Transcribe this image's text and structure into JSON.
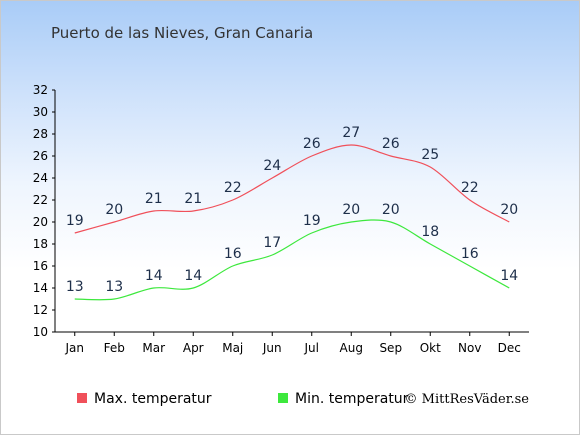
{
  "chart_data": {
    "type": "line",
    "title": "Puerto de las Nieves, Gran Canaria",
    "categories": [
      "Jan",
      "Feb",
      "Mar",
      "Apr",
      "Maj",
      "Jun",
      "Jul",
      "Aug",
      "Sep",
      "Okt",
      "Nov",
      "Dec"
    ],
    "ylim": [
      10,
      32
    ],
    "yticks": [
      10,
      12,
      14,
      16,
      18,
      20,
      22,
      24,
      26,
      28,
      30,
      32
    ],
    "grid": false,
    "legend_position": "bottom-left",
    "series": [
      {
        "name": "Max. temperatur",
        "color": "#f0505a",
        "values": [
          19,
          20,
          21,
          21,
          22,
          24,
          26,
          27,
          26,
          25,
          22,
          20
        ]
      },
      {
        "name": "Min. temperatur",
        "color": "#3de83d",
        "values": [
          13,
          13,
          14,
          14,
          16,
          17,
          19,
          20,
          20,
          18,
          16,
          14
        ]
      }
    ]
  },
  "credit": "© MittResVäder.se"
}
